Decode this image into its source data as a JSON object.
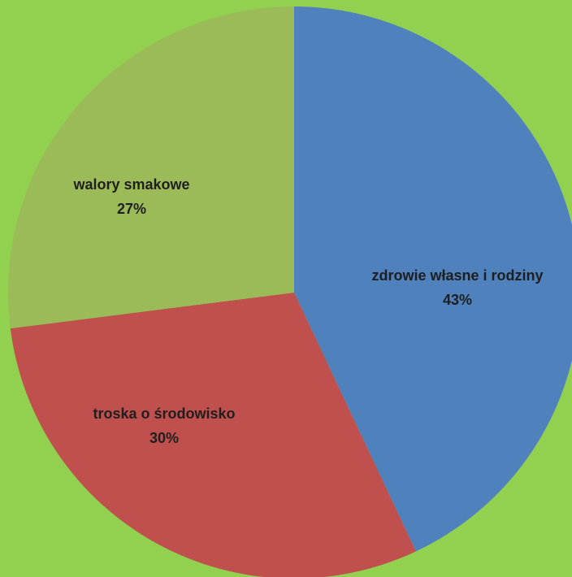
{
  "chart_data": {
    "type": "pie",
    "slices": [
      {
        "label": "zdrowie własne  i rodziny",
        "value": 43,
        "value_label": "43%",
        "color": "#4f81bd"
      },
      {
        "label": "troska o środowisko",
        "value": 30,
        "value_label": "30%",
        "color": "#c0504d"
      },
      {
        "label": "walory smakowe",
        "value": 27,
        "value_label": "27%",
        "color": "#9bbb59"
      }
    ],
    "start_angle": "12 o'clock",
    "direction": "clockwise",
    "background_color": "#92d050"
  }
}
